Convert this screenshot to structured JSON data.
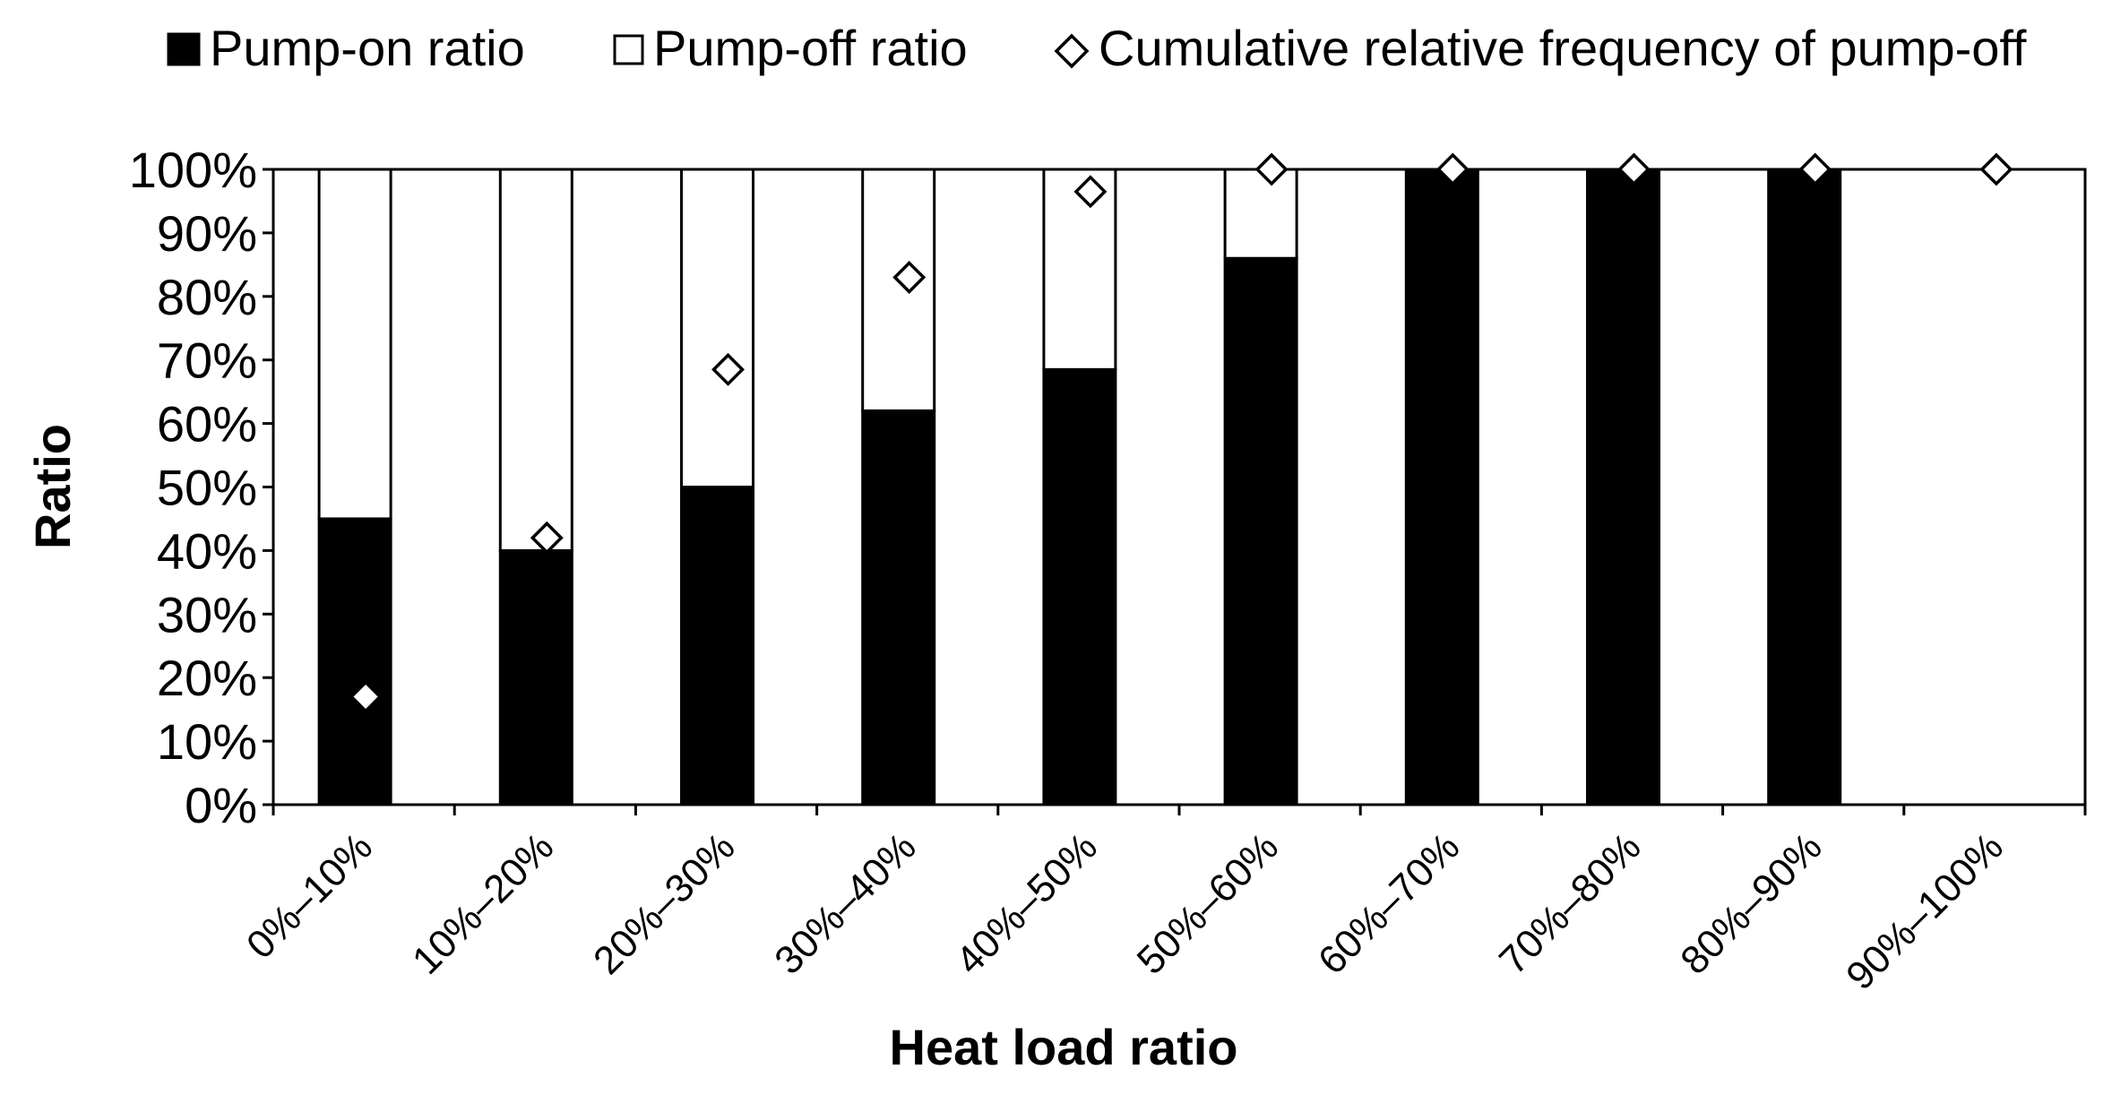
{
  "chart_data": {
    "type": "bar",
    "stacked": true,
    "title": "",
    "xlabel": "Heat load ratio",
    "ylabel": "Ratio",
    "ylim": [
      0,
      100
    ],
    "yticks": [
      "0%",
      "10%",
      "20%",
      "30%",
      "40%",
      "50%",
      "60%",
      "70%",
      "80%",
      "90%",
      "100%"
    ],
    "categories": [
      "0%–10%",
      "10%–20%",
      "20%–30%",
      "30%–40%",
      "40%–50%",
      "50%–60%",
      "60%–70%",
      "70%–80%",
      "80%–90%",
      "90%–100%"
    ],
    "series": [
      {
        "name": "Pump-on ratio",
        "type": "bar",
        "color": "#000000",
        "values": [
          45,
          40,
          50,
          62,
          68.5,
          86,
          100,
          100,
          100,
          0
        ]
      },
      {
        "name": "Pump-off ratio",
        "type": "bar",
        "color": "#ffffff",
        "values": [
          55,
          60,
          50,
          38,
          31.5,
          14,
          0,
          0,
          0,
          0
        ]
      },
      {
        "name": "Cumulative relative frequency of pump-off",
        "type": "scatter",
        "marker": "diamond",
        "values": [
          17,
          42,
          68.5,
          83,
          96.5,
          100,
          100,
          100,
          100,
          100
        ]
      }
    ],
    "legend_position": "top",
    "grid": false
  }
}
